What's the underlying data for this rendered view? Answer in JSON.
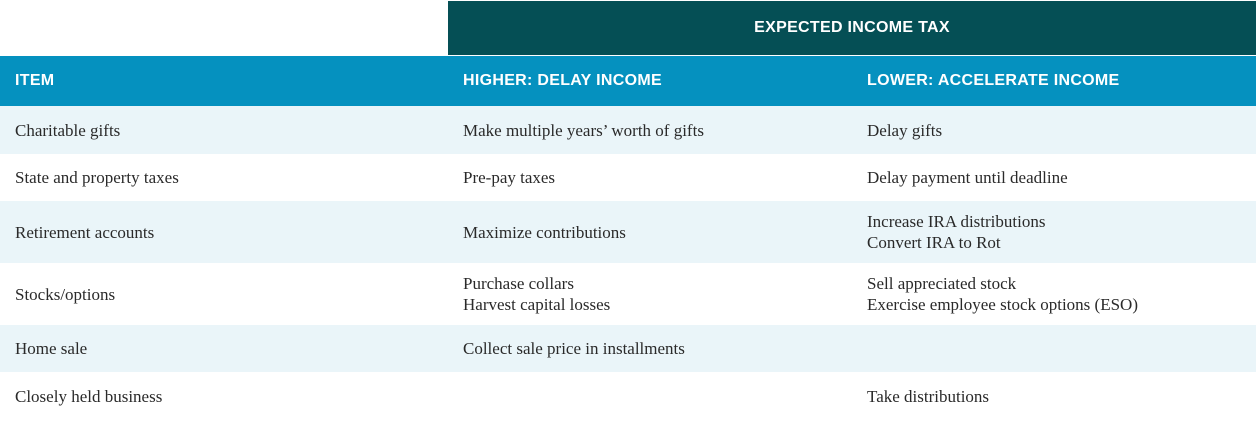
{
  "header": {
    "group_label": "EXPECTED INCOME TAX",
    "columns": [
      "ITEM",
      "HIGHER: DELAY INCOME",
      "LOWER: ACCELERATE INCOME"
    ]
  },
  "rows": [
    {
      "item": "Charitable gifts",
      "higher": [
        "Make multiple years’ worth of gifts"
      ],
      "lower": [
        "Delay gifts"
      ]
    },
    {
      "item": "State and property taxes",
      "higher": [
        "Pre-pay taxes"
      ],
      "lower": [
        "Delay payment until deadline"
      ]
    },
    {
      "item": "Retirement accounts",
      "higher": [
        "Maximize contributions"
      ],
      "lower": [
        "Increase IRA distributions",
        "Convert IRA to Rot"
      ]
    },
    {
      "item": "Stocks/options",
      "higher": [
        "Purchase collars",
        "Harvest capital losses"
      ],
      "lower": [
        "Sell appreciated stock",
        "Exercise employee stock options (ESO)"
      ]
    },
    {
      "item": "Home sale",
      "higher": [
        "Collect sale price in installments"
      ],
      "lower": []
    },
    {
      "item": "Closely held business",
      "higher": [],
      "lower": [
        "Take distributions"
      ]
    }
  ],
  "colors": {
    "group_header_bg": "#054f55",
    "column_header_bg": "#0591bf",
    "row_shade_bg": "#eaf5f9",
    "text": "#2a2a2a"
  }
}
